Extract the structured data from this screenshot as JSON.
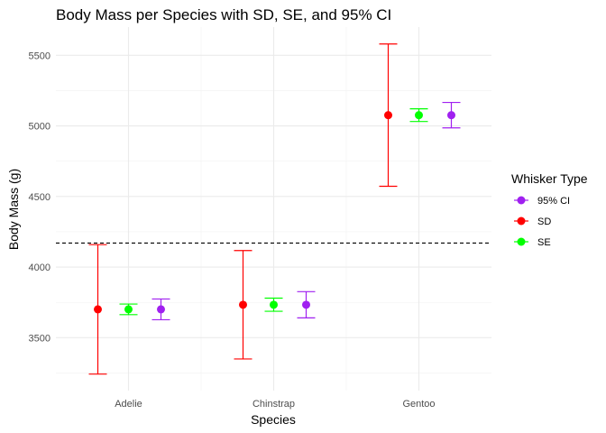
{
  "chart_data": {
    "type": "errorbar",
    "title": "Body Mass per Species with SD, SE, and 95% CI",
    "xlabel": "Species",
    "ylabel": "Body Mass (g)",
    "categories": [
      "Adelie",
      "Chinstrap",
      "Gentoo"
    ],
    "ylim": [
      3125,
      5700
    ],
    "yticks": [
      3500,
      4000,
      4500,
      5000,
      5500
    ],
    "grid": true,
    "reference_line": {
      "y": 4170,
      "style": "dashed",
      "color": "#000000"
    },
    "legend": {
      "title": "Whisker Type",
      "position": "right"
    },
    "series": [
      {
        "name": "SD",
        "color": "#FF0000",
        "mean": [
          3700.7,
          3733.1,
          5076.0
        ],
        "lower": [
          3242,
          3349,
          4572
        ],
        "upper": [
          4159,
          4117,
          5580
        ]
      },
      {
        "name": "SE",
        "color": "#00FF00",
        "mean": [
          3700.7,
          3733.1,
          5076.0
        ],
        "lower": [
          3663,
          3687,
          5031
        ],
        "upper": [
          3738,
          3780,
          5121
        ]
      },
      {
        "name": "95% CI",
        "color": "#A020F0",
        "mean": [
          3700.7,
          3733.1,
          5076.0
        ],
        "lower": [
          3627,
          3640,
          4986
        ],
        "upper": [
          3774,
          3826,
          5166
        ]
      }
    ],
    "legend_order": [
      "95% CI",
      "SD",
      "SE"
    ]
  }
}
